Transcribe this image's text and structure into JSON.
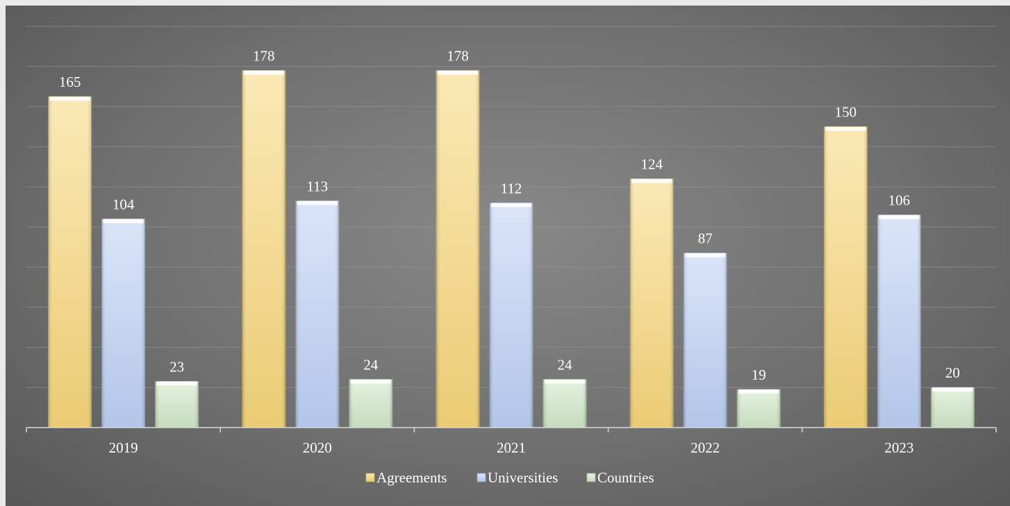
{
  "chart_data": {
    "type": "bar",
    "categories": [
      "2019",
      "2020",
      "2021",
      "2022",
      "2023"
    ],
    "series": [
      {
        "name": "Agreements",
        "values": [
          165,
          178,
          178,
          124,
          150
        ],
        "color": "#f7d77a"
      },
      {
        "name": "Universities",
        "values": [
          104,
          113,
          112,
          87,
          106
        ],
        "color": "#bcd0f4"
      },
      {
        "name": "Countries",
        "values": [
          23,
          24,
          24,
          19,
          20
        ],
        "color": "#cfe8c7"
      }
    ],
    "ylim": [
      0,
      200
    ],
    "grid": true,
    "legend": "bottom",
    "data_labels": true
  }
}
